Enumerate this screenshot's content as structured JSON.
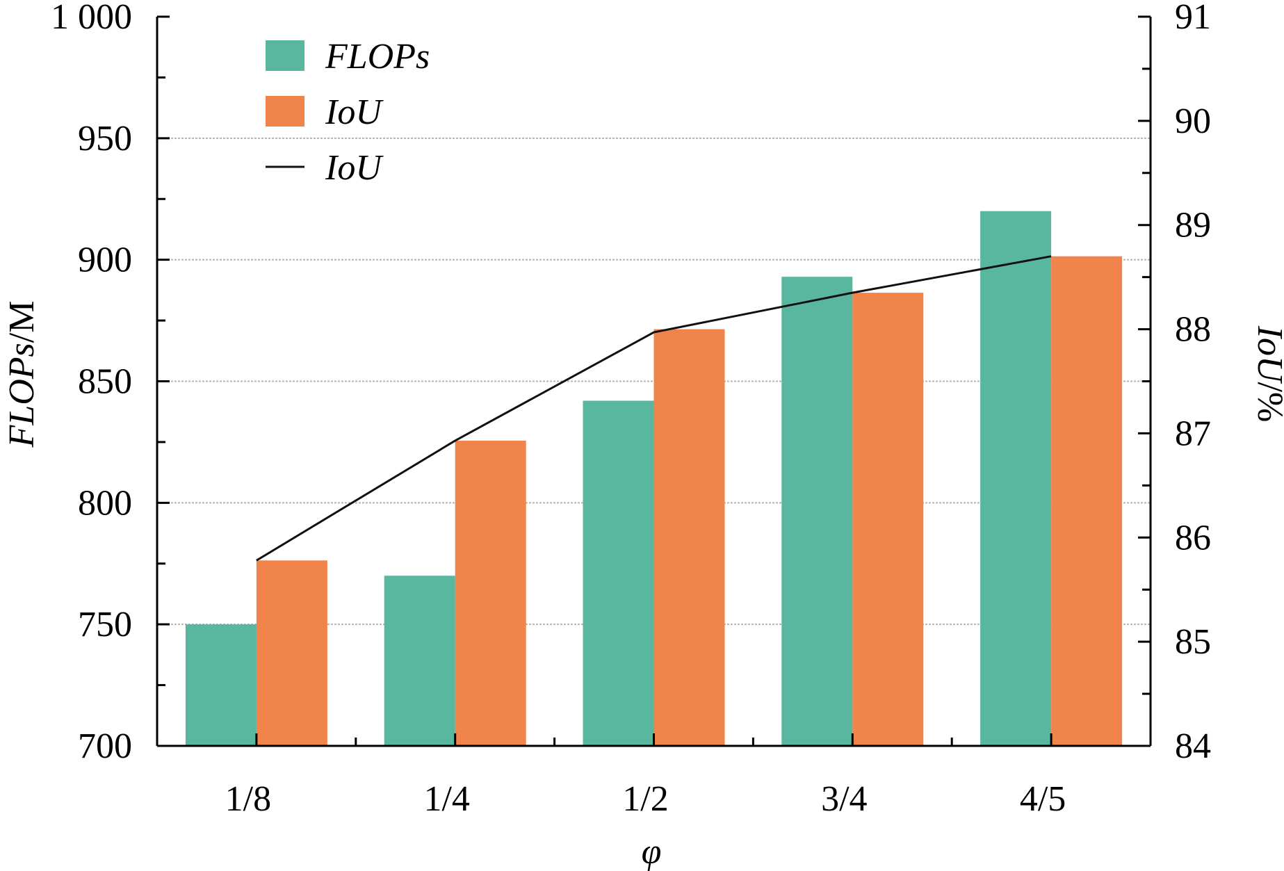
{
  "chart_data": {
    "type": "bar",
    "categories": [
      "1/8",
      "1/4",
      "1/2",
      "3/4",
      "4/5"
    ],
    "xlabel": "φ",
    "ylabel_left": {
      "italic": "FLOPs",
      "normal": "/M"
    },
    "ylabel_right": {
      "italic": "IoU",
      "normal": "/%"
    },
    "ylim_left": [
      700,
      1000
    ],
    "ylim_right": [
      84,
      91
    ],
    "yticks_left": [
      700,
      750,
      800,
      850,
      900,
      950,
      1000
    ],
    "yticks_left_labels": [
      "700",
      "750",
      "800",
      "850",
      "900",
      "950",
      "1 000"
    ],
    "yticks_right": [
      84,
      85,
      86,
      87,
      88,
      89,
      90,
      91
    ],
    "yticks_right_labels": [
      "84",
      "85",
      "86",
      "87",
      "88",
      "89",
      "90",
      "91"
    ],
    "grid": true,
    "legend_position": "top-left",
    "series": [
      {
        "name": "FLOPs",
        "kind": "bar",
        "axis": "left",
        "color": "#5ab79f",
        "values": [
          750,
          770,
          842,
          893,
          920
        ]
      },
      {
        "name": "IoU",
        "kind": "bar",
        "axis": "right",
        "color": "#f0844b",
        "values": [
          85.78,
          86.93,
          88.0,
          88.35,
          88.7
        ]
      },
      {
        "name": "IoU",
        "kind": "line",
        "axis": "right",
        "color": "#111111",
        "values": [
          85.78,
          86.93,
          87.97,
          88.35,
          88.7
        ]
      }
    ]
  }
}
